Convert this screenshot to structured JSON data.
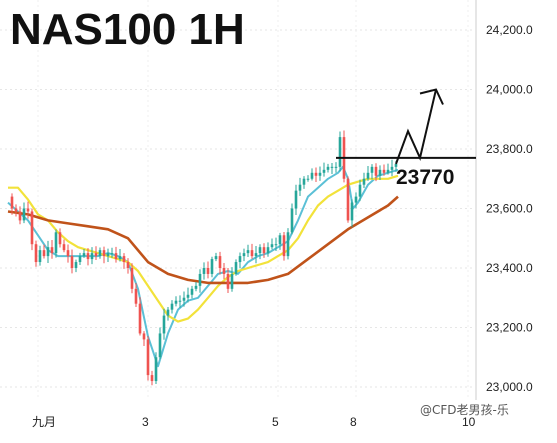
{
  "chart_data": {
    "type": "candlestick",
    "title": "NAS100 1H",
    "y_ticks": [
      24200,
      24000,
      23800,
      23600,
      23400,
      23200,
      23000
    ],
    "y_tick_labels": [
      "24,200.0",
      "24,000.0",
      "23,800.0",
      "23,600.0",
      "23,400.0",
      "23,200.0",
      "23,000.0"
    ],
    "ylim": [
      22960,
      24300
    ],
    "x_tick_labels": [
      "九月",
      "3",
      "5",
      "8",
      "10"
    ],
    "grid": true,
    "colors": {
      "up": "#26a69a",
      "down": "#ef5350",
      "ma_fast": "#5bc0d6",
      "ma_mid": "#f2e23a",
      "ma_slow": "#c0531a",
      "annotation": "#111111"
    },
    "ohlc_path": [
      [
        0,
        23640
      ],
      [
        4,
        23600
      ],
      [
        8,
        23590
      ],
      [
        12,
        23560
      ],
      [
        16,
        23600
      ],
      [
        20,
        23590
      ],
      [
        24,
        23480
      ],
      [
        28,
        23420
      ],
      [
        32,
        23460
      ],
      [
        36,
        23440
      ],
      [
        40,
        23470
      ],
      [
        44,
        23450
      ],
      [
        48,
        23520
      ],
      [
        52,
        23480
      ],
      [
        56,
        23460
      ],
      [
        60,
        23440
      ],
      [
        64,
        23400
      ],
      [
        68,
        23420
      ],
      [
        72,
        23440
      ],
      [
        76,
        23450
      ],
      [
        80,
        23430
      ],
      [
        84,
        23450
      ],
      [
        88,
        23440
      ],
      [
        92,
        23460
      ],
      [
        96,
        23440
      ],
      [
        100,
        23450
      ],
      [
        104,
        23450
      ],
      [
        108,
        23430
      ],
      [
        112,
        23440
      ],
      [
        116,
        23420
      ],
      [
        120,
        23400
      ],
      [
        124,
        23330
      ],
      [
        128,
        23280
      ],
      [
        132,
        23180
      ],
      [
        136,
        23160
      ],
      [
        140,
        23040
      ],
      [
        144,
        23020
      ],
      [
        148,
        23100
      ],
      [
        152,
        23180
      ],
      [
        156,
        23240
      ],
      [
        160,
        23260
      ],
      [
        164,
        23280
      ],
      [
        168,
        23290
      ],
      [
        172,
        23290
      ],
      [
        176,
        23300
      ],
      [
        180,
        23310
      ],
      [
        184,
        23330
      ],
      [
        188,
        23340
      ],
      [
        192,
        23380
      ],
      [
        196,
        23400
      ],
      [
        200,
        23380
      ],
      [
        204,
        23430
      ],
      [
        208,
        23440
      ],
      [
        212,
        23400
      ],
      [
        216,
        23380
      ],
      [
        220,
        23330
      ],
      [
        224,
        23380
      ],
      [
        228,
        23420
      ],
      [
        232,
        23440
      ],
      [
        236,
        23450
      ],
      [
        240,
        23460
      ],
      [
        244,
        23440
      ],
      [
        248,
        23450
      ],
      [
        252,
        23470
      ],
      [
        256,
        23450
      ],
      [
        260,
        23470
      ],
      [
        264,
        23480
      ],
      [
        268,
        23480
      ],
      [
        272,
        23510
      ],
      [
        276,
        23440
      ],
      [
        280,
        23520
      ],
      [
        284,
        23600
      ],
      [
        288,
        23660
      ],
      [
        292,
        23680
      ],
      [
        296,
        23700
      ],
      [
        300,
        23700
      ],
      [
        304,
        23720
      ],
      [
        308,
        23710
      ],
      [
        312,
        23720
      ],
      [
        316,
        23730
      ],
      [
        320,
        23740
      ],
      [
        324,
        23740
      ],
      [
        328,
        23740
      ],
      [
        332,
        23840
      ],
      [
        336,
        23700
      ],
      [
        340,
        23560
      ],
      [
        344,
        23620
      ],
      [
        348,
        23640
      ],
      [
        352,
        23680
      ],
      [
        356,
        23700
      ],
      [
        360,
        23720
      ],
      [
        364,
        23740
      ],
      [
        368,
        23710
      ],
      [
        372,
        23730
      ],
      [
        376,
        23720
      ],
      [
        380,
        23730
      ],
      [
        384,
        23740
      ],
      [
        388,
        23750
      ]
    ],
    "series": [
      {
        "name": "",
        "role": "ma_fast",
        "x": [
          0,
          10,
          20,
          30,
          40,
          50,
          60,
          70,
          80,
          90,
          100,
          110,
          120,
          130,
          140,
          150,
          160,
          170,
          180,
          190,
          200,
          210,
          220,
          230,
          240,
          250,
          260,
          270,
          280,
          290,
          300,
          310,
          320,
          330,
          335,
          340,
          345,
          350,
          355,
          360,
          370,
          380,
          390
        ],
        "values": [
          23620,
          23590,
          23560,
          23510,
          23460,
          23440,
          23440,
          23440,
          23440,
          23440,
          23450,
          23440,
          23420,
          23330,
          23170,
          23070,
          23180,
          23260,
          23290,
          23300,
          23340,
          23380,
          23390,
          23380,
          23420,
          23440,
          23450,
          23470,
          23490,
          23560,
          23640,
          23670,
          23700,
          23720,
          23740,
          23700,
          23600,
          23620,
          23650,
          23680,
          23710,
          23720,
          23730
        ]
      },
      {
        "name": "",
        "role": "ma_mid",
        "x": [
          0,
          10,
          20,
          30,
          40,
          50,
          60,
          70,
          80,
          90,
          100,
          110,
          120,
          130,
          140,
          150,
          160,
          170,
          180,
          190,
          200,
          210,
          220,
          230,
          240,
          250,
          260,
          270,
          280,
          290,
          300,
          310,
          320,
          330,
          340,
          350,
          360,
          370,
          380,
          390
        ],
        "values": [
          23670,
          23670,
          23630,
          23580,
          23560,
          23520,
          23490,
          23470,
          23460,
          23450,
          23440,
          23430,
          23420,
          23390,
          23340,
          23290,
          23240,
          23220,
          23230,
          23260,
          23300,
          23340,
          23370,
          23390,
          23400,
          23410,
          23420,
          23440,
          23460,
          23500,
          23560,
          23610,
          23640,
          23660,
          23680,
          23690,
          23700,
          23700,
          23700,
          23710
        ]
      },
      {
        "name": "",
        "role": "ma_slow",
        "x": [
          0,
          20,
          40,
          60,
          80,
          100,
          120,
          140,
          160,
          180,
          200,
          220,
          240,
          260,
          280,
          300,
          320,
          340,
          360,
          380,
          390
        ],
        "values": [
          23590,
          23580,
          23560,
          23550,
          23540,
          23530,
          23500,
          23420,
          23380,
          23360,
          23350,
          23350,
          23350,
          23360,
          23380,
          23430,
          23480,
          23530,
          23570,
          23610,
          23640
        ]
      }
    ],
    "annotation": {
      "level": 23770,
      "label": "23770",
      "projection": [
        [
          388,
          23750
        ],
        [
          400,
          23860
        ],
        [
          412,
          23770
        ],
        [
          428,
          24000
        ]
      ]
    }
  },
  "watermark": "@CFD老男孩-乐"
}
